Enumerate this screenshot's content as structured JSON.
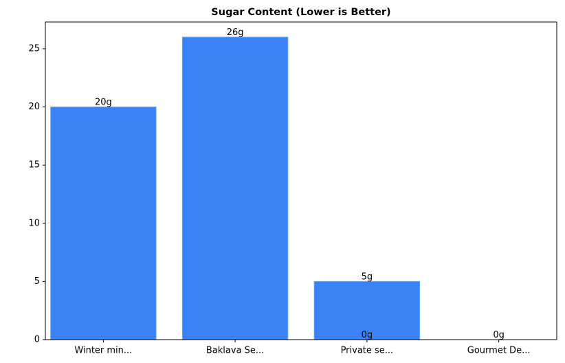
{
  "chart_data": {
    "type": "bar",
    "title": "Sugar Content (Lower is Better)",
    "categories": [
      "Winter min...",
      "Baklava Se...",
      "Private se...",
      "Private se...",
      "Gourmet De..."
    ],
    "values": [
      20,
      26,
      5,
      0,
      0
    ],
    "value_labels": [
      "20g",
      "26g",
      "5g",
      "0g",
      "0g"
    ],
    "color": "#3b82f6",
    "ylim": [
      0,
      27.3
    ],
    "yticks": [
      0,
      5,
      10,
      15,
      20,
      25
    ]
  }
}
